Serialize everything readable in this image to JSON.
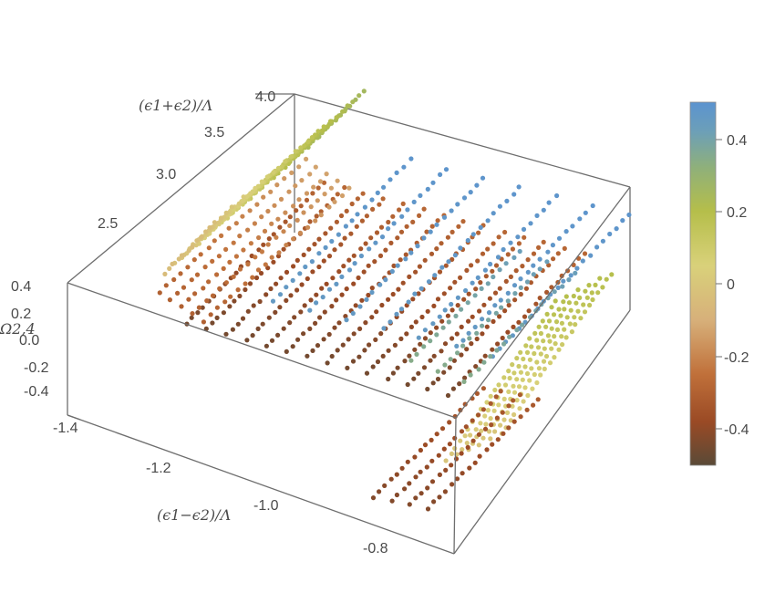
{
  "chart_data": {
    "type": "scatter",
    "subtype": "3d",
    "x_axis": {
      "label": "(ϵ1−ϵ2)/Λ",
      "ticks": [
        "-1.4",
        "-1.2",
        "-1.0",
        "-0.8"
      ],
      "range": [
        -1.45,
        -0.72
      ]
    },
    "y_axis": {
      "label": "(ϵ1+ϵ2)/Λ",
      "ticks": [
        "2.5",
        "3.0",
        "3.5",
        "4.0"
      ],
      "range": [
        2.2,
        4.0
      ]
    },
    "z_axis": {
      "label": "Ω2,4",
      "ticks": [
        "0.4",
        "0.2",
        "0.0",
        "-0.2",
        "-0.4"
      ],
      "range": [
        -0.5,
        0.4
      ]
    },
    "colorbar": {
      "ticks": [
        "0.4",
        "0.2",
        "0",
        "-0.2",
        "-0.4"
      ],
      "range": [
        -0.5,
        0.5
      ],
      "stops": [
        "#5a4a37",
        "#9a4a25",
        "#c0703a",
        "#d7b07a",
        "#d9d17a",
        "#b5be4a",
        "#8fb07a",
        "#6c9fb8",
        "#5b93d0"
      ]
    },
    "description_note": "Points arranged in parallel diagonal streaks; color encodes the vertical value."
  }
}
